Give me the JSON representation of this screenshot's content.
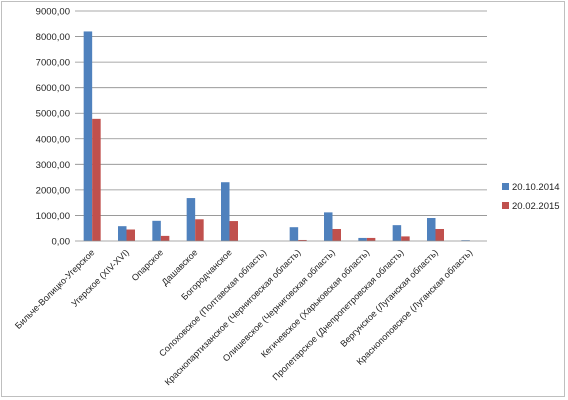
{
  "chart_data": {
    "type": "bar",
    "categories": [
      "Бильче-Волицко-Угерское",
      "Угерское (XIV-XVI)",
      "Опарское",
      "Дашавское",
      "Богородчанское",
      "Солоховское (Полтавская область)",
      "Краснопартизанское (Черниговская область)",
      "Олишевское (Черниговская область)",
      "Кегичевское (Харьковская область)",
      "Пролетарское (Днепропетровская область)",
      "Вергунское (Луганская область)",
      "Краснопоповское (Луганская область)"
    ],
    "series": [
      {
        "name": "20.10.2014",
        "color": "#4f81bd",
        "values": [
          8200,
          580,
          790,
          1680,
          2300,
          0,
          540,
          1120,
          120,
          620,
          900,
          0
        ]
      },
      {
        "name": "20.02.2015",
        "color": "#c0504d",
        "values": [
          4780,
          450,
          200,
          850,
          780,
          0,
          40,
          470,
          120,
          180,
          470,
          0
        ]
      }
    ],
    "extra_bars": [
      {
        "category_index": 10,
        "series_index": 1,
        "value": 180
      },
      {
        "category_index": 11,
        "series_index": 0,
        "value": 30
      }
    ],
    "ylim": [
      0,
      9000
    ],
    "yticks": [
      "0,00",
      "1000,00",
      "2000,00",
      "3000,00",
      "4000,00",
      "5000,00",
      "6000,00",
      "7000,00",
      "8000,00",
      "9000,00"
    ],
    "grid": true,
    "legend_position": "right"
  }
}
